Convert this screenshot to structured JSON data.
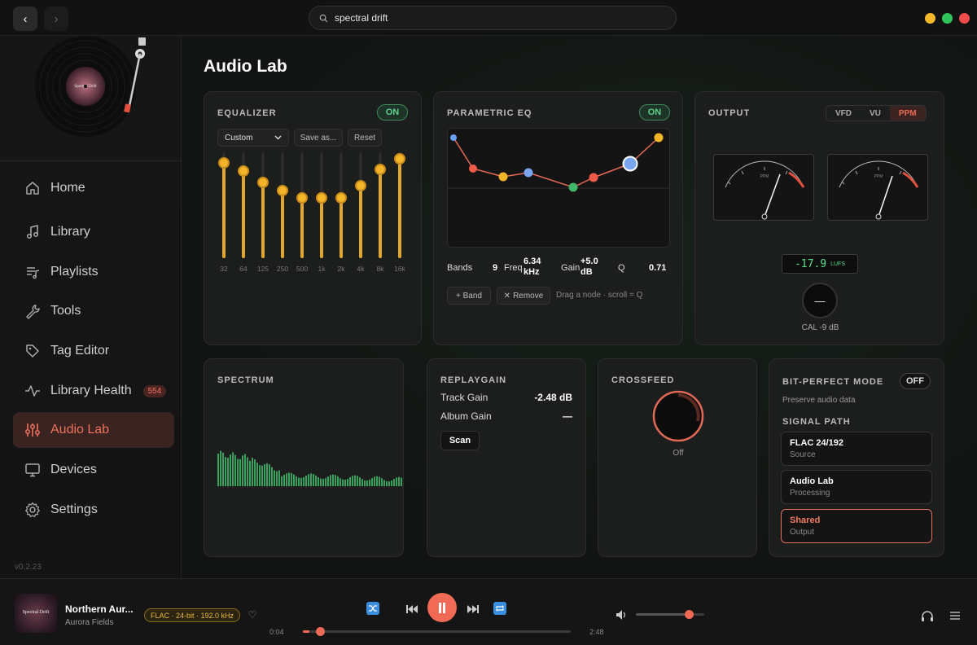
{
  "titlebar": {
    "search_value": "spectral drift"
  },
  "sidebar": {
    "album_text": "Spectral Drift",
    "items": [
      {
        "label": "Home",
        "icon": "home-icon"
      },
      {
        "label": "Library",
        "icon": "music-note-icon"
      },
      {
        "label": "Playlists",
        "icon": "playlist-icon"
      },
      {
        "label": "Tools",
        "icon": "wrench-icon"
      },
      {
        "label": "Tag Editor",
        "icon": "tag-icon"
      },
      {
        "label": "Library Health",
        "icon": "pulse-icon",
        "badge": "554"
      },
      {
        "label": "Audio Lab",
        "icon": "sliders-icon",
        "active": true
      },
      {
        "label": "Devices",
        "icon": "monitor-icon"
      },
      {
        "label": "Settings",
        "icon": "gear-icon"
      }
    ],
    "version": "v0.2.23"
  },
  "page": {
    "title": "Audio Lab"
  },
  "equalizer": {
    "title": "EQUALIZER",
    "status": "ON",
    "preset": "Custom",
    "save_label": "Save as...",
    "reset_label": "Reset",
    "bands": [
      {
        "label": "32",
        "level": 0.94
      },
      {
        "label": "64",
        "level": 0.86
      },
      {
        "label": "125",
        "level": 0.75
      },
      {
        "label": "250",
        "level": 0.67
      },
      {
        "label": "500",
        "level": 0.6
      },
      {
        "label": "1k",
        "level": 0.6
      },
      {
        "label": "2k",
        "level": 0.6
      },
      {
        "label": "4k",
        "level": 0.72
      },
      {
        "label": "8k",
        "level": 0.88
      },
      {
        "label": "16k",
        "level": 0.98
      }
    ]
  },
  "parametric": {
    "title": "PARAMETRIC EQ",
    "status": "ON",
    "bands_label": "Bands",
    "bands_value": "9",
    "freq_label": "Freq",
    "freq_value": "6.34",
    "freq_unit": "kHz",
    "gain_label": "Gain",
    "gain_value": "+5.0",
    "gain_unit": "dB",
    "q_label": "Q",
    "q_value": "0.71",
    "add_label": "+ Band",
    "remove_label": "Remove",
    "hint": "Drag a node · scroll = Q"
  },
  "output": {
    "title": "OUTPUT",
    "modes": [
      "VFD",
      "VU",
      "PPM"
    ],
    "selected_mode": "PPM",
    "meter_label": "PPM",
    "lufs_value": "-17.9",
    "lufs_unit": "LUFS",
    "cal_label": "CAL -9 dB",
    "knob_symbol": "—"
  },
  "spectrum": {
    "title": "SPECTRUM"
  },
  "replaygain": {
    "title": "REPLAYGAIN",
    "track_label": "Track Gain",
    "track_value": "-2.48 dB",
    "album_label": "Album Gain",
    "album_value": "—",
    "scan_label": "Scan"
  },
  "crossfeed": {
    "title": "CROSSFEED",
    "value": "Off"
  },
  "bitperfect": {
    "title": "BIT-PERFECT MODE",
    "status": "OFF",
    "description": "Preserve audio data",
    "path_title": "SIGNAL PATH",
    "path": [
      {
        "title": "FLAC 24/192",
        "sub": "Source"
      },
      {
        "title": "Audio Lab",
        "sub": "Processing"
      },
      {
        "title": "Shared",
        "sub": "Output"
      }
    ]
  },
  "player": {
    "title": "Northern Aur...",
    "artist": "Aurora Fields",
    "format": "FLAC · 24-bit · 192.0 kHz",
    "elapsed": "0:04",
    "duration": "2:48",
    "progress": 0.024,
    "volume": 0.72
  },
  "colors": {
    "accent": "#f0705c",
    "eq": "#f4b428",
    "on": "#5fd08c"
  }
}
